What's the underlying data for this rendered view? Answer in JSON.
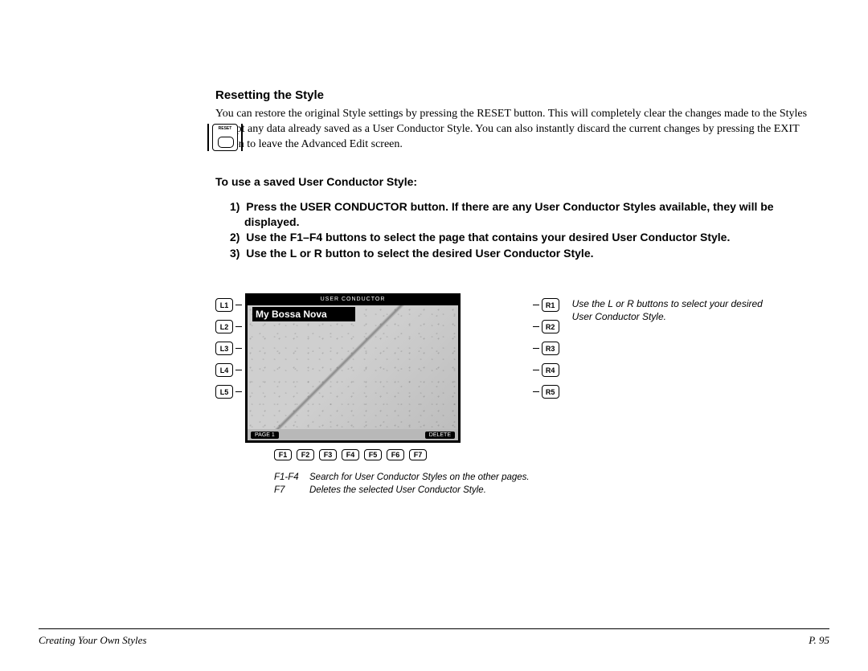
{
  "section": {
    "title": "Resetting the Style",
    "body": "You can restore the original Style settings by pressing the RESET button. This will completely clear the changes made to the Styles except any data already saved as a User Conductor Style. You can also instantly discard the current changes by pressing the EXIT button to leave the Advanced Edit screen."
  },
  "reset_icon_label": "RESET",
  "procedure": {
    "heading": "To use a saved User Conductor Style:",
    "steps": [
      "Press the USER CONDUCTOR button. If there are any User Conductor Styles available, they will be displayed.",
      "Use the F1–F4 buttons to select the page that contains your desired User Conductor Style.",
      "Use the L or R button to select the desired User Conductor Style."
    ]
  },
  "screen": {
    "header": "USER CONDUCTOR",
    "title": "My Bossa Nova",
    "footer_left": "PAGE 1",
    "footer_right": "DELETE"
  },
  "buttons": {
    "left": [
      "L1",
      "L2",
      "L3",
      "L4",
      "L5"
    ],
    "right": [
      "R1",
      "R2",
      "R3",
      "R4",
      "R5"
    ],
    "bottom": [
      "F1",
      "F2",
      "F3",
      "F4",
      "F5",
      "F6",
      "F7"
    ]
  },
  "side_caption": "Use the L or R buttons to select your desired User Conductor Style.",
  "bottom_caption": {
    "a_label": "F1-F4",
    "a_text": "Search for User Conductor Styles on the other pages.",
    "b_label": "F7",
    "b_text": "Deletes the selected User Conductor Style."
  },
  "footer": {
    "left": "Creating Your Own Styles",
    "right": "P. 95"
  },
  "colors": {
    "text": "#000000",
    "background": "#ffffff",
    "screen_bg": "#b8b8b8"
  }
}
